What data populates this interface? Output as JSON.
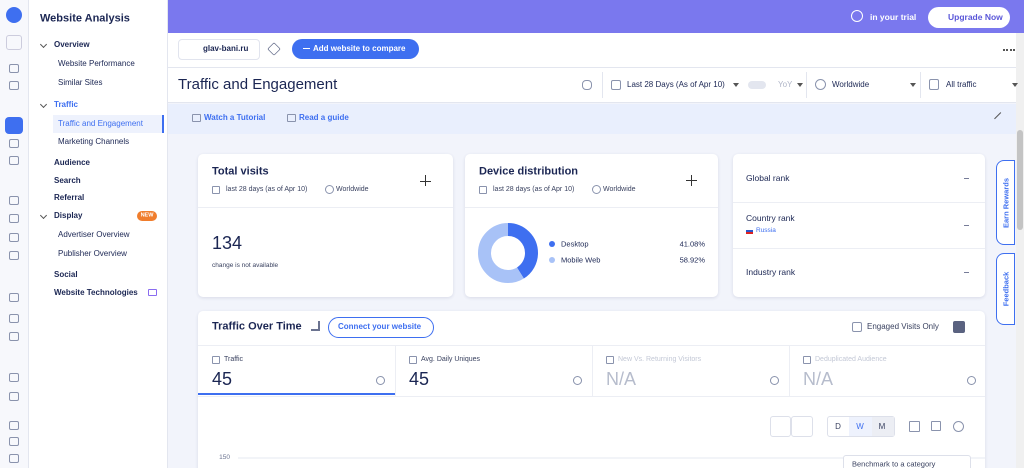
{
  "sidebar": {
    "title": "Website Analysis",
    "nav": [
      "Overview",
      "Website Performance",
      "Similar Sites",
      "Traffic",
      "Traffic and Engagement",
      "Marketing Channels",
      "Audience",
      "Search",
      "Referral",
      "Display",
      "Advertiser Overview",
      "Publisher Overview",
      "Social",
      "Website Technologies"
    ],
    "new_badge": "NEW"
  },
  "topbar": {
    "trial": "in your trial",
    "upgrade": "Upgrade Now"
  },
  "site_bar": {
    "domain": "glav-bani.ru",
    "compare_button": "Add website to compare"
  },
  "header": {
    "title": "Traffic and Engagement",
    "date_range": "Last 28 Days (As of Apr 10)",
    "yoy": "YoY",
    "region": "Worldwide",
    "traffic": "All traffic"
  },
  "banner": {
    "tutorial": "Watch a Tutorial",
    "guide": "Read a guide"
  },
  "total_visits": {
    "title": "Total visits",
    "period": "last 28 days (as of Apr 10)",
    "region": "Worldwide",
    "value": 134,
    "note": "change is not available"
  },
  "device_distribution": {
    "title": "Device distribution",
    "period": "last 28 days (as of Apr 10)",
    "region": "Worldwide",
    "items": [
      {
        "name": "Desktop",
        "color": "#3e6ff0",
        "value": 41.08,
        "label": "41.08%"
      },
      {
        "name": "Mobile Web",
        "color": "#a8c2f7",
        "value": 58.92,
        "label": "58.92%"
      }
    ]
  },
  "ranks": {
    "items": [
      {
        "label": "Global rank",
        "value": "–"
      },
      {
        "label": "Country rank",
        "country": "Russia",
        "value": "–"
      },
      {
        "label": "Industry rank",
        "value": "–"
      }
    ]
  },
  "traffic_over_time": {
    "title": "Traffic Over Time",
    "connect_button": "Connect your website",
    "engaged_toggle": "Engaged Visits Only",
    "metrics": [
      {
        "label": "Traffic",
        "value": 45
      },
      {
        "label": "Avg. Daily Uniques",
        "value": 45
      },
      {
        "label": "New Vs. Returning Visitors",
        "value": "N/A"
      },
      {
        "label": "Deduplicated Audience",
        "value": "N/A"
      }
    ],
    "granularity": [
      "D",
      "W",
      "M"
    ],
    "yticks": [
      150
    ],
    "benchmark": "Benchmark to a category"
  },
  "side_tabs": [
    "Earn Rewards",
    "Feedback"
  ]
}
